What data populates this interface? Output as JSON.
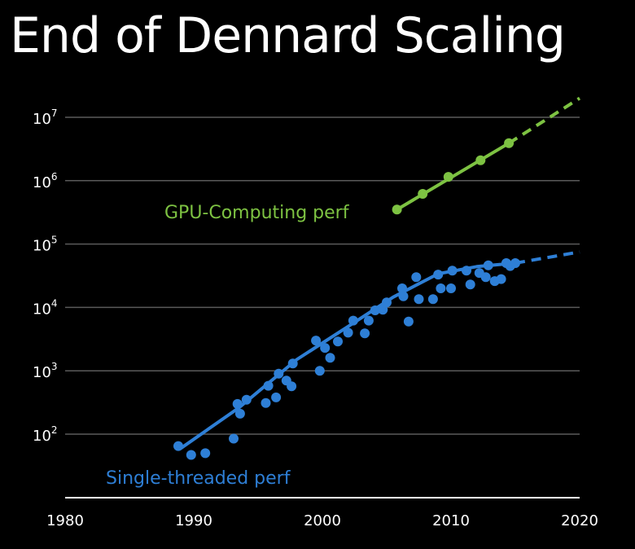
{
  "title": "End of Dennard Scaling",
  "colors": {
    "background": "#000000",
    "gpu": "#7dc242",
    "cpu": "#2e7fd6",
    "grid": "#5a5a5a",
    "axis": "#ffffff"
  },
  "chart_data": {
    "type": "scatter",
    "title": "End of Dennard Scaling",
    "xlabel": "",
    "ylabel": "",
    "x_ticks": [
      1980,
      1990,
      2000,
      2010,
      2020
    ],
    "y_ticks": [
      {
        "value": 100,
        "base": "10",
        "exp": "2"
      },
      {
        "value": 1000,
        "base": "10",
        "exp": "3"
      },
      {
        "value": 10000,
        "base": "10",
        "exp": "4"
      },
      {
        "value": 100000,
        "base": "10",
        "exp": "5"
      },
      {
        "value": 1000000,
        "base": "10",
        "exp": "6"
      },
      {
        "value": 10000000,
        "base": "10",
        "exp": "7"
      }
    ],
    "xlim": [
      1980,
      2020
    ],
    "ylim": [
      10,
      20000000
    ],
    "y_scale": "log",
    "grid": "horizontal",
    "series": [
      {
        "name": "GPU-Computing perf",
        "color": "#7dc242",
        "points": [
          [
            2005.8,
            350000
          ],
          [
            2007.8,
            620000
          ],
          [
            2009.8,
            1150000
          ],
          [
            2012.3,
            2100000
          ],
          [
            2014.5,
            3900000
          ]
        ],
        "trend": [
          [
            2005.8,
            350000
          ],
          [
            2014.5,
            3900000
          ]
        ],
        "projection": [
          [
            2014.5,
            3900000
          ],
          [
            2020,
            20000000
          ]
        ]
      },
      {
        "name": "Single-threaded perf",
        "color": "#2e7fd6",
        "points": [
          [
            1988.8,
            65
          ],
          [
            1989.8,
            47
          ],
          [
            1990.9,
            50
          ],
          [
            1993.1,
            85
          ],
          [
            1993.4,
            300
          ],
          [
            1993.6,
            210
          ],
          [
            1994.1,
            350
          ],
          [
            1995.6,
            310
          ],
          [
            1995.8,
            580
          ],
          [
            1996.4,
            380
          ],
          [
            1996.6,
            900
          ],
          [
            1997.2,
            700
          ],
          [
            1997.6,
            570
          ],
          [
            1997.7,
            1300
          ],
          [
            1999.5,
            3000
          ],
          [
            1999.8,
            1000
          ],
          [
            2000.2,
            2300
          ],
          [
            2000.6,
            1600
          ],
          [
            2001.2,
            2900
          ],
          [
            2002.0,
            4000
          ],
          [
            2002.4,
            6200
          ],
          [
            2003.3,
            3900
          ],
          [
            2003.6,
            6200
          ],
          [
            2004.1,
            9000
          ],
          [
            2004.7,
            9200
          ],
          [
            2005.0,
            12000
          ],
          [
            2006.2,
            20000
          ],
          [
            2006.3,
            15000
          ],
          [
            2006.7,
            6000
          ],
          [
            2007.3,
            30000
          ],
          [
            2007.5,
            13500
          ],
          [
            2008.6,
            13500
          ],
          [
            2009.0,
            33000
          ],
          [
            2009.2,
            20000
          ],
          [
            2010.0,
            20000
          ],
          [
            2010.1,
            38000
          ],
          [
            2011.2,
            38000
          ],
          [
            2011.5,
            23000
          ],
          [
            2012.2,
            35000
          ],
          [
            2012.7,
            30000
          ],
          [
            2012.9,
            46000
          ],
          [
            2013.4,
            26000
          ],
          [
            2013.9,
            28000
          ],
          [
            2014.3,
            50000
          ],
          [
            2014.6,
            45000
          ],
          [
            2015.0,
            50000
          ]
        ],
        "trend": [
          [
            1989.0,
            60
          ],
          [
            1993.5,
            260
          ],
          [
            1998.0,
            1500
          ],
          [
            2002.0,
            5000
          ],
          [
            2005.5,
            14500
          ],
          [
            2009.0,
            34000
          ],
          [
            2012.0,
            44000
          ],
          [
            2015.0,
            50000
          ]
        ],
        "projection": [
          [
            2015.0,
            50000
          ],
          [
            2020,
            75000
          ]
        ]
      }
    ]
  }
}
